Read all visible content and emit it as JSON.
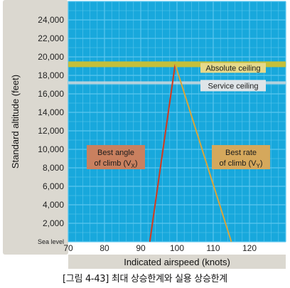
{
  "chart_data": {
    "type": "line",
    "xlabel": "Indicated airspeed (knots)",
    "ylabel": "Standard altitude (feet)",
    "xlim": [
      70,
      130
    ],
    "ylim": [
      0,
      26000
    ],
    "x_ticks": [
      "70",
      "80",
      "90",
      "100",
      "110",
      "120"
    ],
    "y_ticks": [
      "Sea level",
      "2,000",
      "4,000",
      "6,000",
      "8,000",
      "10,000",
      "12,000",
      "14,000",
      "16,000",
      "18,000",
      "20,000",
      "22,000",
      "24,000"
    ],
    "grid": true,
    "series": [
      {
        "name": "Best angle of climb (Vx)",
        "color": "#d23a1e",
        "points": [
          [
            92.5,
            0
          ],
          [
            99.5,
            19200
          ]
        ]
      },
      {
        "name": "Best rate of climb (Vy)",
        "color": "#d9a53a",
        "points": [
          [
            115,
            0
          ],
          [
            99.5,
            19200
          ]
        ]
      }
    ],
    "reference_lines": [
      {
        "label": "Absolute ceiling",
        "y": 19200,
        "color": "#c9c23a"
      },
      {
        "label": "Service ceiling",
        "y": 17200,
        "color": "#ffffff"
      }
    ],
    "annotations": {
      "vx_line1": "Best angle",
      "vx_line2": "of climb (V",
      "vx_sub": "X",
      "vx_close": ")",
      "vy_line1": "Best rate",
      "vy_line2": "of climb (V",
      "vy_sub": "Y",
      "vy_close": ")"
    },
    "colors": {
      "plot_background": "#18a8dc",
      "grid": "#5cc6ee",
      "axis_band": "#dbd8d0",
      "vx_box": "#c9805f",
      "vy_box": "#d5a85c",
      "ceiling_band": "#c4bf3a",
      "service_band": "#cfd8dc"
    }
  },
  "caption": "[그림 4-43] 최대 상승한계와 실용 상승한계"
}
